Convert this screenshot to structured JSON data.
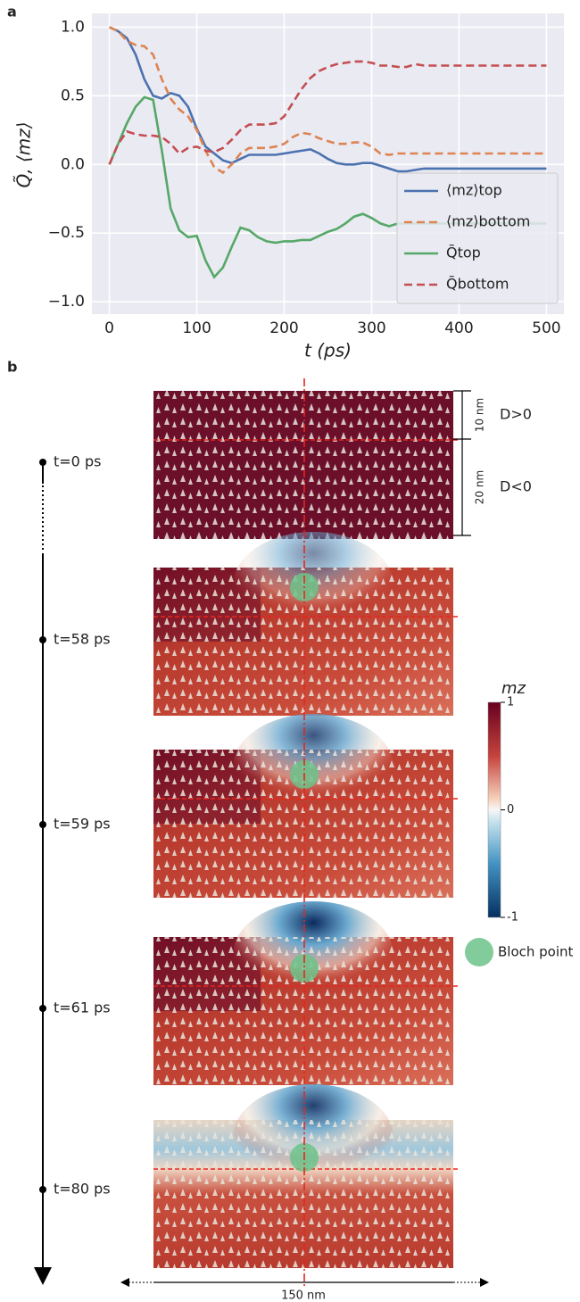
{
  "panel_a": {
    "label": "a"
  },
  "chart_data": {
    "type": "line",
    "x_label": "t (ps)",
    "y_label": "Q̃, ⟨mz⟩",
    "x": [
      0,
      10,
      20,
      30,
      40,
      50,
      60,
      70,
      80,
      90,
      100,
      110,
      120,
      130,
      140,
      150,
      160,
      170,
      180,
      190,
      200,
      210,
      220,
      230,
      240,
      250,
      260,
      270,
      280,
      290,
      300,
      310,
      320,
      330,
      340,
      350,
      360,
      370,
      380,
      390,
      400,
      410,
      420,
      430,
      440,
      450,
      460,
      470,
      480,
      490,
      500
    ],
    "series": [
      {
        "name": "⟨mz⟩top",
        "color": "#4c72b0",
        "dash": false,
        "values": [
          1.0,
          0.97,
          0.92,
          0.8,
          0.62,
          0.5,
          0.48,
          0.52,
          0.5,
          0.42,
          0.26,
          0.13,
          0.08,
          0.03,
          0.01,
          0.04,
          0.07,
          0.07,
          0.07,
          0.07,
          0.08,
          0.09,
          0.1,
          0.11,
          0.08,
          0.04,
          0.01,
          0.0,
          0.0,
          0.01,
          0.01,
          -0.01,
          -0.03,
          -0.05,
          -0.05,
          -0.04,
          -0.03,
          -0.03,
          -0.03,
          -0.03,
          -0.03,
          -0.03,
          -0.03,
          -0.03,
          -0.03,
          -0.03,
          -0.03,
          -0.03,
          -0.03,
          -0.03,
          -0.03
        ]
      },
      {
        "name": "⟨mz⟩bottom",
        "color": "#dd8452",
        "dash": true,
        "values": [
          1.0,
          0.97,
          0.9,
          0.87,
          0.86,
          0.8,
          0.62,
          0.48,
          0.4,
          0.35,
          0.25,
          0.1,
          -0.02,
          -0.06,
          0.0,
          0.08,
          0.12,
          0.12,
          0.12,
          0.13,
          0.15,
          0.2,
          0.23,
          0.22,
          0.19,
          0.17,
          0.15,
          0.15,
          0.16,
          0.16,
          0.13,
          0.08,
          0.07,
          0.08,
          0.08,
          0.08,
          0.08,
          0.08,
          0.08,
          0.08,
          0.08,
          0.08,
          0.08,
          0.08,
          0.08,
          0.08,
          0.08,
          0.08,
          0.08,
          0.08,
          0.08
        ]
      },
      {
        "name": "Q̃top",
        "color": "#55a868",
        "dash": false,
        "values": [
          0.0,
          0.15,
          0.3,
          0.42,
          0.49,
          0.47,
          0.1,
          -0.32,
          -0.48,
          -0.53,
          -0.52,
          -0.7,
          -0.82,
          -0.75,
          -0.6,
          -0.46,
          -0.48,
          -0.53,
          -0.56,
          -0.57,
          -0.56,
          -0.56,
          -0.55,
          -0.55,
          -0.52,
          -0.49,
          -0.47,
          -0.43,
          -0.38,
          -0.36,
          -0.39,
          -0.43,
          -0.45,
          -0.43,
          -0.43,
          -0.43,
          -0.43,
          -0.43,
          -0.43,
          -0.43,
          -0.43,
          -0.43,
          -0.43,
          -0.43,
          -0.43,
          -0.43,
          -0.43,
          -0.43,
          -0.43,
          -0.43,
          -0.43
        ]
      },
      {
        "name": "Q̃bottom",
        "color": "#c44e52",
        "dash": true,
        "values": [
          0.0,
          0.15,
          0.24,
          0.22,
          0.21,
          0.21,
          0.2,
          0.15,
          0.08,
          0.12,
          0.13,
          0.1,
          0.09,
          0.12,
          0.18,
          0.25,
          0.29,
          0.29,
          0.29,
          0.3,
          0.35,
          0.45,
          0.55,
          0.63,
          0.68,
          0.71,
          0.73,
          0.74,
          0.75,
          0.75,
          0.74,
          0.72,
          0.72,
          0.71,
          0.71,
          0.73,
          0.72,
          0.72,
          0.72,
          0.72,
          0.72,
          0.72,
          0.72,
          0.72,
          0.72,
          0.72,
          0.72,
          0.72,
          0.72,
          0.72,
          0.72
        ]
      }
    ],
    "xlim": [
      -20,
      520
    ],
    "ylim": [
      -1.09,
      1.1
    ],
    "xticks": [
      0,
      100,
      200,
      300,
      400,
      500
    ],
    "yticks": [
      {
        "value": -1,
        "label": "−1.0"
      },
      {
        "value": -0.5,
        "label": "−0.5"
      },
      {
        "value": 0,
        "label": "0.0"
      },
      {
        "value": 0.5,
        "label": "0.5"
      },
      {
        "value": 1,
        "label": "1.0"
      }
    ],
    "grid": true,
    "legend": "lower right"
  },
  "panel_b": {
    "label": "b",
    "frames": [
      {
        "time": "t=0 ps"
      },
      {
        "time": "t=58 ps"
      },
      {
        "time": "t=59 ps"
      },
      {
        "time": "t=61 ps"
      },
      {
        "time": "t=80 ps"
      }
    ],
    "top_thickness": "10 nm",
    "bottom_thickness": "20 nm",
    "top_dmi": "D>0",
    "bottom_dmi": "D<0",
    "width": "150 nm",
    "colorbar": {
      "label": "mz",
      "clim": [
        -1,
        1
      ],
      "ticks": [
        1,
        0,
        -1
      ]
    },
    "marker_legend": "Bloch point"
  }
}
